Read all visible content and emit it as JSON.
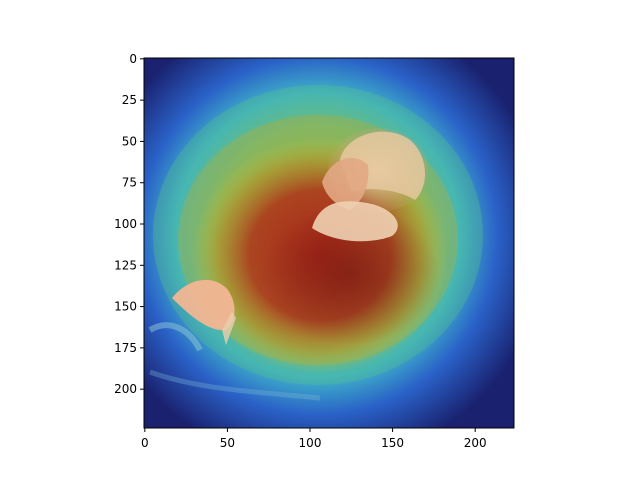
{
  "chart_data": {
    "type": "heatmap",
    "title": "",
    "xlabel": "",
    "ylabel": "",
    "xlim": [
      0,
      224
    ],
    "ylim": [
      224,
      0
    ],
    "y_axis_inverted": true,
    "image_content": "photograph of an elderly bearded man with hands clasped, overlaid with a jet-colormap attention heatmap",
    "colormap": "jet",
    "hotspot_center": [
      110,
      120
    ],
    "xticks": [
      0,
      50,
      100,
      150,
      200
    ],
    "yticks": [
      0,
      25,
      50,
      75,
      100,
      125,
      150,
      175,
      200
    ],
    "xtick_labels": [
      "0",
      "50",
      "100",
      "150",
      "200"
    ],
    "ytick_labels": [
      "0",
      "25",
      "50",
      "75",
      "100",
      "125",
      "150",
      "175",
      "200"
    ],
    "grid": false,
    "legend": "none",
    "colors": {
      "low": "#1a2fa8",
      "mid": "#35c4a0",
      "high": "#c01818"
    }
  }
}
